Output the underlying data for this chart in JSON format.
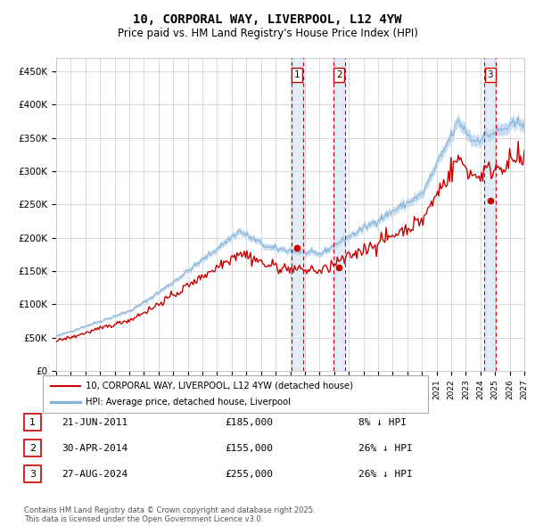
{
  "title": "10, CORPORAL WAY, LIVERPOOL, L12 4YW",
  "subtitle": "Price paid vs. HM Land Registry's House Price Index (HPI)",
  "title_fontsize": 10,
  "subtitle_fontsize": 8.5,
  "hpi_fill_color": "#c6dcf0",
  "hpi_line_color": "#8ab4d4",
  "price_color": "#cc0000",
  "bg_color": "#ffffff",
  "grid_color": "#cccccc",
  "legend_house_label": "10, CORPORAL WAY, LIVERPOOL, L12 4YW (detached house)",
  "legend_hpi_label": "HPI: Average price, detached house, Liverpool",
  "ylim": [
    0,
    470000
  ],
  "yticks": [
    0,
    50000,
    100000,
    150000,
    200000,
    250000,
    300000,
    350000,
    400000,
    450000
  ],
  "ytick_labels": [
    "£0",
    "£50K",
    "£100K",
    "£150K",
    "£200K",
    "£250K",
    "£300K",
    "£350K",
    "£400K",
    "£450K"
  ],
  "xmin": 1995,
  "xmax": 2027,
  "transactions": [
    {
      "label": "1",
      "date_num": 2011.47,
      "price": 185000,
      "text": "21-JUN-2011",
      "amount": "£185,000",
      "pct": "8% ↓ HPI"
    },
    {
      "label": "2",
      "date_num": 2014.33,
      "price": 155000,
      "text": "30-APR-2014",
      "amount": "£155,000",
      "pct": "26% ↓ HPI"
    },
    {
      "label": "3",
      "date_num": 2024.66,
      "price": 255000,
      "text": "27-AUG-2024",
      "amount": "£255,000",
      "pct": "26% ↓ HPI"
    }
  ],
  "footnote": "Contains HM Land Registry data © Crown copyright and database right 2025.\nThis data is licensed under the Open Government Licence v3.0."
}
